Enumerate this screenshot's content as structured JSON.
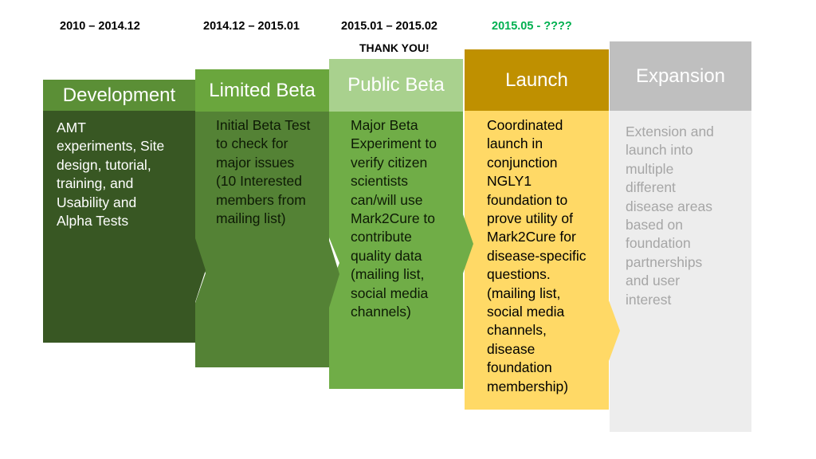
{
  "stages": [
    {
      "date": "2010 – 2014.12",
      "title": "Development",
      "description": "AMT\nexperiments, Site\ndesign, tutorial,\ntraining, and\nUsability and\nAlpha Tests",
      "colors": {
        "header": "#5b8f36",
        "body": "#385723",
        "title_text": "#ffffff",
        "body_text": "#ffffff",
        "date_text": "#000000"
      }
    },
    {
      "date": "2014.12 – 2015.01",
      "title": "Limited Beta",
      "description": "Initial Beta Test\nto check for\nmajor issues\n(10 Interested\nmembers from\nmailing list)",
      "colors": {
        "header": "#6aa63d",
        "body": "#548235",
        "title_text": "#ffffff",
        "body_text": "#0d1a05",
        "date_text": "#000000"
      }
    },
    {
      "date": "2015.01 – 2015.02",
      "note": "THANK YOU!",
      "title": "Public Beta",
      "description": "Major Beta\nExperiment to\nverify citizen\nscientists\ncan/will use\nMark2Cure to\ncontribute\nquality data\n(mailing list,\nsocial media\nchannels)",
      "colors": {
        "header": "#a9d18e",
        "body": "#70ad47",
        "title_text": "#ffffff",
        "body_text": "#0d1a05",
        "date_text": "#000000"
      }
    },
    {
      "date": "2015.05 - ????",
      "title": "Launch",
      "description": "Coordinated\nlaunch in\nconjunction\nNGLY1\nfoundation to\nprove utility of\nMark2Cure for\ndisease-specific\nquestions.\n(mailing list,\nsocial media\nchannels,\ndisease\nfoundation\nmembership)",
      "colors": {
        "header": "#bf9000",
        "body": "#ffd966",
        "title_text": "#ffffff",
        "body_text": "#000000",
        "date_text": "#00b050"
      }
    },
    {
      "title": "Expansion",
      "description": "Extension and\nlaunch into\nmultiple\ndifferent\ndisease areas\nbased on\nfoundation\npartnerships\nand user\ninterest",
      "colors": {
        "header": "#bfbfbf",
        "body": "#ededed",
        "title_text": "#ffffff",
        "body_text": "#a6a6a6"
      }
    }
  ]
}
